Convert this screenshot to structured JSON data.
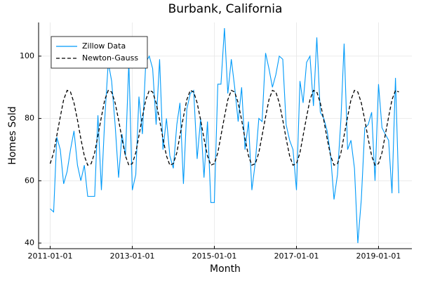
{
  "chart_data": {
    "type": "line",
    "title": "Burbank, California",
    "x_label": "Month",
    "y_label": "Homes Sold",
    "x": [
      "2011-01-01",
      "2011-02-01",
      "2011-03-01",
      "2011-04-01",
      "2011-05-01",
      "2011-06-01",
      "2011-07-01",
      "2011-08-01",
      "2011-09-01",
      "2011-10-01",
      "2011-11-01",
      "2011-12-01",
      "2012-01-01",
      "2012-02-01",
      "2012-03-01",
      "2012-04-01",
      "2012-05-01",
      "2012-06-01",
      "2012-07-01",
      "2012-08-01",
      "2012-09-01",
      "2012-10-01",
      "2012-11-01",
      "2012-12-01",
      "2013-01-01",
      "2013-02-01",
      "2013-03-01",
      "2013-04-01",
      "2013-05-01",
      "2013-06-01",
      "2013-07-01",
      "2013-08-01",
      "2013-09-01",
      "2013-10-01",
      "2013-11-01",
      "2013-12-01",
      "2014-01-01",
      "2014-02-01",
      "2014-03-01",
      "2014-04-01",
      "2014-05-01",
      "2014-06-01",
      "2014-07-01",
      "2014-08-01",
      "2014-09-01",
      "2014-10-01",
      "2014-11-01",
      "2014-12-01",
      "2015-01-01",
      "2015-02-01",
      "2015-03-01",
      "2015-04-01",
      "2015-05-01",
      "2015-06-01",
      "2015-07-01",
      "2015-08-01",
      "2015-09-01",
      "2015-10-01",
      "2015-11-01",
      "2015-12-01",
      "2016-01-01",
      "2016-02-01",
      "2016-03-01",
      "2016-04-01",
      "2016-05-01",
      "2016-06-01",
      "2016-07-01",
      "2016-08-01",
      "2016-09-01",
      "2016-10-01",
      "2016-11-01",
      "2016-12-01",
      "2017-01-01",
      "2017-02-01",
      "2017-03-01",
      "2017-04-01",
      "2017-05-01",
      "2017-06-01",
      "2017-07-01",
      "2017-08-01",
      "2017-09-01",
      "2017-10-01",
      "2017-11-01",
      "2017-12-01",
      "2018-01-01",
      "2018-02-01",
      "2018-03-01",
      "2018-04-01",
      "2018-05-01",
      "2018-06-01",
      "2018-07-01",
      "2018-08-01",
      "2018-09-01",
      "2018-10-01",
      "2018-11-01",
      "2018-12-01",
      "2019-01-01",
      "2019-02-01",
      "2019-03-01",
      "2019-04-01",
      "2019-05-01",
      "2019-06-01",
      "2019-07-01"
    ],
    "series": [
      {
        "name": "Zillow Data",
        "color": "#009af9",
        "dash": false,
        "values": [
          51,
          50,
          74,
          70,
          59,
          63,
          70,
          76,
          65,
          60,
          65,
          55,
          55,
          55,
          81,
          57,
          80,
          98,
          92,
          78,
          61,
          75,
          68,
          98,
          57,
          62,
          87,
          75,
          98,
          100,
          96,
          78,
          99,
          70,
          80,
          68,
          64,
          78,
          85,
          59,
          83,
          88,
          89,
          67,
          80,
          61,
          79,
          53,
          53,
          91,
          91,
          109,
          88,
          99,
          90,
          79,
          90,
          70,
          79,
          57,
          66,
          80,
          79,
          101,
          96,
          90,
          94,
          100,
          99,
          78,
          73,
          70,
          57,
          92,
          85,
          98,
          100,
          84,
          106,
          82,
          80,
          76,
          68,
          54,
          62,
          80,
          104,
          70,
          73,
          64,
          40,
          54,
          77,
          78,
          82,
          60,
          91,
          77,
          75,
          73,
          56,
          93,
          56
        ]
      },
      {
        "name": "Newton-Gauss",
        "color": "#000000",
        "dash": true,
        "values": [
          65.5,
          69,
          74.5,
          80.5,
          86,
          89,
          88.5,
          85,
          79.5,
          73.5,
          68,
          65,
          65.5,
          69,
          74.5,
          80.5,
          86,
          89,
          88.5,
          85,
          79.5,
          73.5,
          68,
          65,
          65.5,
          69,
          74.5,
          80.5,
          86,
          89,
          88.5,
          85,
          79.5,
          73.5,
          68,
          65,
          65.5,
          69,
          74.5,
          80.5,
          86,
          89,
          88.5,
          85,
          79.5,
          73.5,
          68,
          65,
          65.5,
          69,
          74.5,
          80.5,
          86,
          89,
          88.5,
          85,
          79.5,
          73.5,
          68,
          65,
          65.5,
          69,
          74.5,
          80.5,
          86,
          89,
          88.5,
          85,
          79.5,
          73.5,
          68,
          65,
          65.5,
          69,
          74.5,
          80.5,
          86,
          89,
          88.5,
          85,
          79.5,
          73.5,
          68,
          65,
          65.5,
          69,
          74.5,
          80.5,
          86,
          89,
          88.5,
          85,
          79.5,
          73.5,
          68,
          65,
          65.5,
          69,
          74.5,
          80.5,
          86,
          89,
          88.5
        ]
      }
    ],
    "xlim": [
      "2010-09-20",
      "2019-10-25"
    ],
    "xticks": [
      "2011-01-01",
      "2013-01-01",
      "2015-01-01",
      "2017-01-01",
      "2019-01-01"
    ],
    "ylim": [
      38.2,
      110.8
    ],
    "yticks": [
      40,
      60,
      80,
      100
    ],
    "grid": true,
    "legend": "upper-left"
  }
}
